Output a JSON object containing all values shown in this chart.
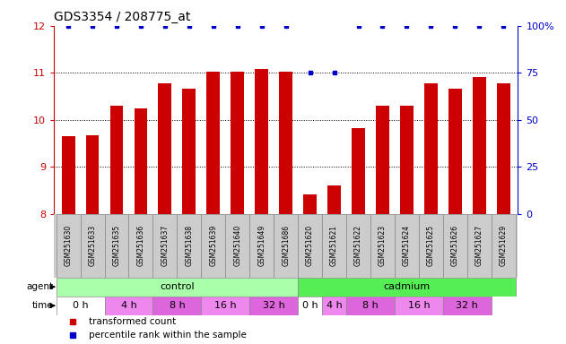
{
  "title": "GDS3354 / 208775_at",
  "samples": [
    "GSM251630",
    "GSM251633",
    "GSM251635",
    "GSM251636",
    "GSM251637",
    "GSM251638",
    "GSM251639",
    "GSM251640",
    "GSM251649",
    "GSM251686",
    "GSM251620",
    "GSM251621",
    "GSM251622",
    "GSM251623",
    "GSM251624",
    "GSM251625",
    "GSM251626",
    "GSM251627",
    "GSM251629"
  ],
  "bar_values": [
    9.65,
    9.67,
    10.3,
    10.25,
    10.78,
    10.67,
    11.02,
    11.02,
    11.08,
    11.02,
    8.42,
    8.6,
    9.83,
    10.3,
    10.3,
    10.78,
    10.67,
    10.9,
    10.78
  ],
  "percentile_values": [
    100,
    100,
    100,
    100,
    100,
    100,
    100,
    100,
    100,
    100,
    75,
    75,
    100,
    100,
    100,
    100,
    100,
    100,
    100
  ],
  "bar_color": "#cc0000",
  "percentile_color": "#0000cc",
  "ylim_left": [
    8,
    12
  ],
  "ylim_right": [
    0,
    100
  ],
  "yticks_left": [
    8,
    9,
    10,
    11,
    12
  ],
  "yticks_right": [
    0,
    25,
    50,
    75,
    100
  ],
  "agent_groups": [
    {
      "label": "control",
      "count": 10,
      "color": "#aaffaa"
    },
    {
      "label": "cadmium",
      "count": 9,
      "color": "#55ee55"
    }
  ],
  "time_data": [
    {
      "label": "0 h",
      "count": 2,
      "color": "#ffffff"
    },
    {
      "label": "4 h",
      "count": 2,
      "color": "#ee88ee"
    },
    {
      "label": "8 h",
      "count": 2,
      "color": "#dd66dd"
    },
    {
      "label": "16 h",
      "count": 2,
      "color": "#ee88ee"
    },
    {
      "label": "32 h",
      "count": 2,
      "color": "#dd66dd"
    },
    {
      "label": "0 h",
      "count": 1,
      "color": "#ffffff"
    },
    {
      "label": "4 h",
      "count": 1,
      "color": "#ee88ee"
    },
    {
      "label": "8 h",
      "count": 2,
      "color": "#dd66dd"
    },
    {
      "label": "16 h",
      "count": 2,
      "color": "#ee88ee"
    },
    {
      "label": "32 h",
      "count": 2,
      "color": "#dd66dd"
    }
  ],
  "legend_items": [
    {
      "label": "transformed count",
      "color": "#cc0000"
    },
    {
      "label": "percentile rank within the sample",
      "color": "#0000cc"
    }
  ],
  "left_axis_color": "#cc0000",
  "right_axis_color": "#0000cc",
  "background_color": "#ffffff",
  "label_bg_color": "#cccccc",
  "label_border_color": "#888888"
}
